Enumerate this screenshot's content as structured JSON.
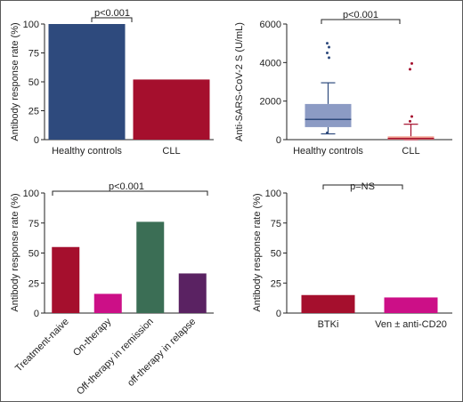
{
  "chart_data": [
    {
      "id": "a",
      "type": "bar",
      "categories": [
        "Healthy controls",
        "CLL"
      ],
      "values": [
        100,
        52
      ],
      "colors": [
        "#2e4a7d",
        "#a50f2d"
      ],
      "ylabel": "Antibody response rate (%)",
      "ylim": [
        0,
        100
      ],
      "yticks": [
        0,
        25,
        50,
        75,
        100
      ],
      "significance": "p<0.001",
      "grid": false
    },
    {
      "id": "b",
      "type": "box",
      "categories": [
        "Healthy controls",
        "CLL"
      ],
      "ylabel": "Anti-SARS-CoV-2 S (U/mL)",
      "ylim": [
        0,
        6000
      ],
      "yticks": [
        0,
        2000,
        4000,
        6000
      ],
      "significance": "p<0.001",
      "grid": false,
      "boxes": [
        {
          "q1": 650,
          "median": 1050,
          "q3": 1850,
          "whisker_low": 300,
          "whisker_high": 2950,
          "outliers": [
            350,
            4250,
            4500,
            4800,
            5000
          ],
          "fill": "#8c9bc4",
          "line": "#2e4a7d"
        },
        {
          "q1": 0,
          "median": 60,
          "q3": 170,
          "whisker_low": 0,
          "whisker_high": 800,
          "outliers": [
            950,
            1200,
            3650,
            3950
          ],
          "fill": "#f0a090",
          "line": "#a50f2d"
        }
      ]
    },
    {
      "id": "c",
      "type": "bar",
      "categories": [
        "Treatment-naive",
        "On-therapy",
        "Off-therapy in remission",
        "off-therapy in relapse"
      ],
      "values": [
        55,
        16,
        76,
        33
      ],
      "colors": [
        "#a50f2d",
        "#cc0f87",
        "#3b6e55",
        "#5a2262"
      ],
      "ylabel": "Antibody response rate (%)",
      "ylim": [
        0,
        100
      ],
      "yticks": [
        0,
        25,
        50,
        75,
        100
      ],
      "significance": "p<0.001",
      "grid": false
    },
    {
      "id": "d",
      "type": "bar",
      "categories": [
        "BTKi",
        "Ven ± anti-CD20"
      ],
      "values": [
        15,
        13
      ],
      "colors": [
        "#a50f2d",
        "#cc0f87"
      ],
      "ylabel": "Antibody response rate (%)",
      "ylim": [
        0,
        100
      ],
      "yticks": [
        0,
        25,
        50,
        75,
        100
      ],
      "significance": "p=NS",
      "grid": false
    }
  ]
}
